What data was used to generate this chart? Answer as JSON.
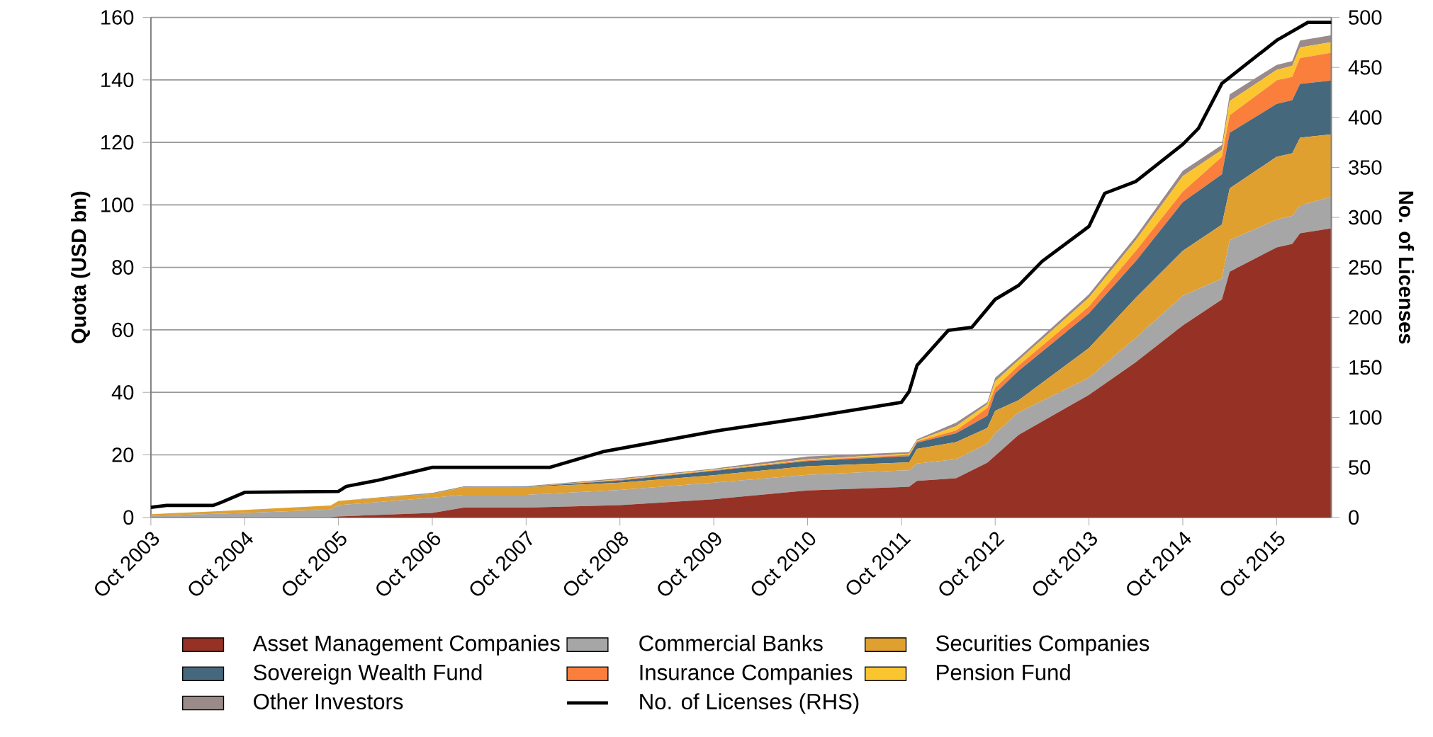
{
  "chart_data": {
    "type": "area",
    "stacked": true,
    "ylabel": "Quota (USD bn)",
    "y2label": "No. of Licenses",
    "x": [
      "2003-10",
      "2004-10",
      "2005-09",
      "2005-10",
      "2006-10",
      "2007-02",
      "2007-10",
      "2008-10",
      "2009-10",
      "2010-10",
      "2011-10",
      "2011-11",
      "2011-12",
      "2012-05",
      "2012-09",
      "2012-10",
      "2013-01",
      "2013-10",
      "2014-04",
      "2014-10",
      "2015-03",
      "2015-04",
      "2015-10",
      "2015-12",
      "2016-01",
      "2016-05"
    ],
    "xlim": [
      "2003-10",
      "2016-05"
    ],
    "xticks": [
      {
        "value": "2003-10",
        "label": "Oct 2003"
      },
      {
        "value": "2004-10",
        "label": "Oct 2004"
      },
      {
        "value": "2005-10",
        "label": "Oct 2005"
      },
      {
        "value": "2006-10",
        "label": "Oct 2006"
      },
      {
        "value": "2007-10",
        "label": "Oct 2007"
      },
      {
        "value": "2008-10",
        "label": "Oct 2008"
      },
      {
        "value": "2009-10",
        "label": "Oct 2009"
      },
      {
        "value": "2010-10",
        "label": "Oct 2010"
      },
      {
        "value": "2011-10",
        "label": "Oct 2011"
      },
      {
        "value": "2012-10",
        "label": "Oct 2012"
      },
      {
        "value": "2013-10",
        "label": "Oct 2013"
      },
      {
        "value": "2014-10",
        "label": "Oct 2014"
      },
      {
        "value": "2015-10",
        "label": "Oct 2015"
      }
    ],
    "ylim": [
      0,
      160
    ],
    "yticks": [
      0,
      20,
      40,
      60,
      80,
      100,
      120,
      140,
      160
    ],
    "y2lim": [
      0,
      500
    ],
    "y2ticks": [
      0,
      50,
      100,
      150,
      200,
      250,
      300,
      350,
      400,
      450,
      500
    ],
    "grid": "y",
    "legend": "bottom",
    "series": [
      {
        "name": "Asset Management Companies",
        "color": "#953225",
        "values": [
          0,
          0,
          0,
          0.3,
          1.4,
          3.1,
          3.1,
          3.9,
          5.8,
          8.6,
          9.7,
          9.8,
          11.7,
          12.5,
          17.5,
          19.7,
          26.4,
          39.2,
          49.7,
          61.4,
          69.7,
          78.6,
          86.4,
          87.5,
          90.9,
          92.5
        ]
      },
      {
        "name": "Commercial Banks",
        "color": "#a6a6a6",
        "values": [
          0.5,
          1.4,
          2.5,
          3.6,
          4.9,
          4.1,
          4.1,
          4.9,
          5.3,
          5.0,
          5.3,
          5.3,
          5.5,
          6.1,
          6.1,
          7.2,
          7.2,
          5.5,
          7.8,
          9.5,
          6.7,
          10.1,
          8.9,
          9.0,
          8.9,
          10.1
        ]
      },
      {
        "name": "Securities Companies",
        "color": "#e0a030",
        "values": [
          0.5,
          1.0,
          1.3,
          1.4,
          1.2,
          2.5,
          2.5,
          2.3,
          2.4,
          2.8,
          2.5,
          2.5,
          4.7,
          5.5,
          5.0,
          7.2,
          3.9,
          9.5,
          12.8,
          14.4,
          17.3,
          16.6,
          20.1,
          20.0,
          21.7,
          20.0
        ]
      },
      {
        "name": "Sovereign Wealth Fund",
        "color": "#46687c",
        "values": [
          0,
          0,
          0,
          0,
          0.1,
          0,
          0.1,
          0.7,
          1.4,
          1.6,
          2.0,
          2.0,
          2.0,
          2.8,
          3.9,
          5.6,
          9.4,
          11.1,
          11.7,
          15.6,
          16.1,
          17.8,
          16.9,
          17.0,
          17.2,
          17.2
        ]
      },
      {
        "name": "Insurance Companies",
        "color": "#fa7f3c",
        "values": [
          0,
          0,
          0,
          0,
          0,
          0,
          0,
          0.2,
          0.2,
          0.3,
          0.4,
          0.4,
          0.4,
          0.9,
          2.5,
          1.8,
          1.7,
          2.2,
          3.3,
          3.3,
          5.6,
          5.6,
          7.5,
          7.5,
          8.3,
          8.9
        ]
      },
      {
        "name": "Pension Fund",
        "color": "#fbc52f",
        "values": [
          0,
          0,
          0,
          0,
          0,
          0,
          0,
          0.2,
          0.2,
          0.3,
          0.4,
          0.4,
          0.3,
          1.4,
          1.2,
          2.0,
          1.7,
          2.8,
          3.4,
          5.0,
          2.2,
          4.5,
          3.4,
          3.5,
          3.4,
          3.4
        ]
      },
      {
        "name": "Other Investors",
        "color": "#9a8a8a",
        "values": [
          0,
          0,
          0,
          0,
          0.2,
          0.2,
          0.2,
          0.3,
          0.3,
          0.9,
          0.5,
          0.5,
          0.4,
          1.1,
          0.7,
          1.2,
          0.9,
          1.1,
          1.3,
          1.7,
          1.6,
          2.2,
          1.6,
          1.5,
          2.2,
          2.2
        ]
      },
      {
        "name": "No. of Licenses (RHS)",
        "type": "line",
        "axis": "y2",
        "color": "#000000",
        "x": [
          "2003-10",
          "2003-12",
          "2004-06",
          "2004-07",
          "2004-10",
          "2005-10",
          "2005-11",
          "2006-03",
          "2006-10",
          "2008-01",
          "2008-08",
          "2009-10",
          "2010-10",
          "2011-10",
          "2011-11",
          "2011-12",
          "2012-04",
          "2012-07",
          "2012-10",
          "2013-01",
          "2013-04",
          "2013-10",
          "2013-12",
          "2014-04",
          "2014-10",
          "2014-12",
          "2015-03",
          "2015-10",
          "2016-02",
          "2016-05"
        ],
        "values": [
          10,
          12,
          12,
          15,
          25,
          26,
          31,
          37,
          50,
          50,
          66,
          86,
          100,
          115,
          126,
          152,
          187,
          190,
          218,
          232,
          256,
          291,
          324,
          336,
          373,
          389,
          434,
          477,
          495,
          495
        ]
      }
    ]
  }
}
